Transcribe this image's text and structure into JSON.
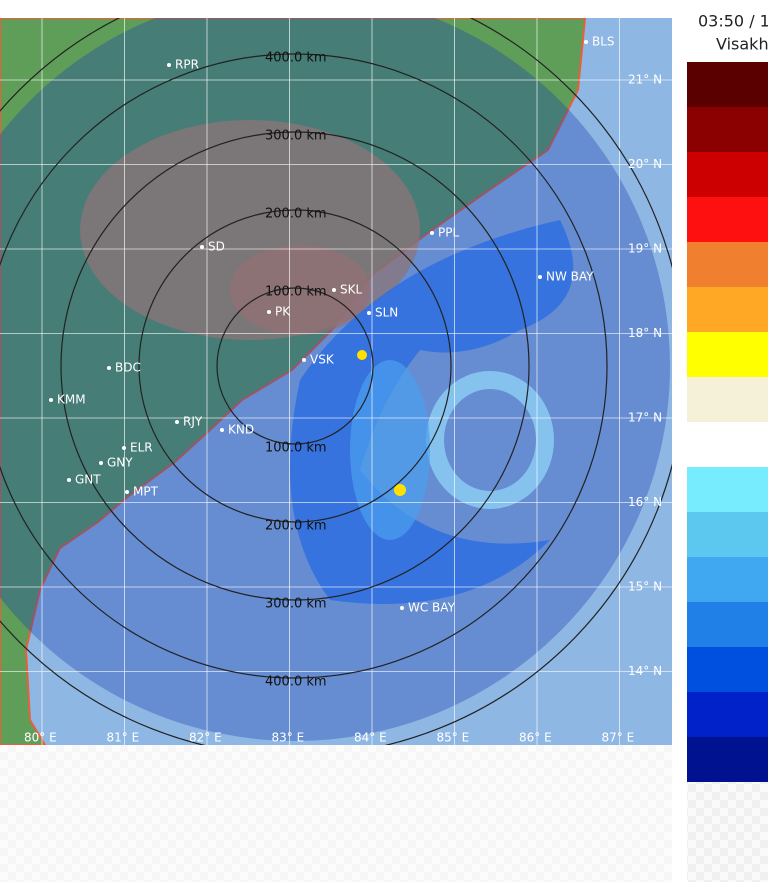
{
  "header": {
    "time": "03:50 / 1",
    "station": "Visakh"
  },
  "rings": [
    "100.0 km",
    "200.0 km",
    "300.0 km",
    "400.0 km"
  ],
  "latitudes": [
    "21° N",
    "20° N",
    "19° N",
    "18° N",
    "17° N",
    "16° N",
    "15° N",
    "14° N"
  ],
  "longitudes": [
    "80° E",
    "81° E",
    "82° E",
    "83° E",
    "84° E",
    "85° E",
    "86° E",
    "87° E"
  ],
  "places": [
    "RPR",
    "BLS",
    "PPL",
    "SD",
    "SKL",
    "PK",
    "SLN",
    "VSK",
    "BDC",
    "KMM",
    "RJY",
    "KND",
    "ELR",
    "GNY",
    "GNT",
    "MPT",
    "NW BAY",
    "WC BAY"
  ]
}
